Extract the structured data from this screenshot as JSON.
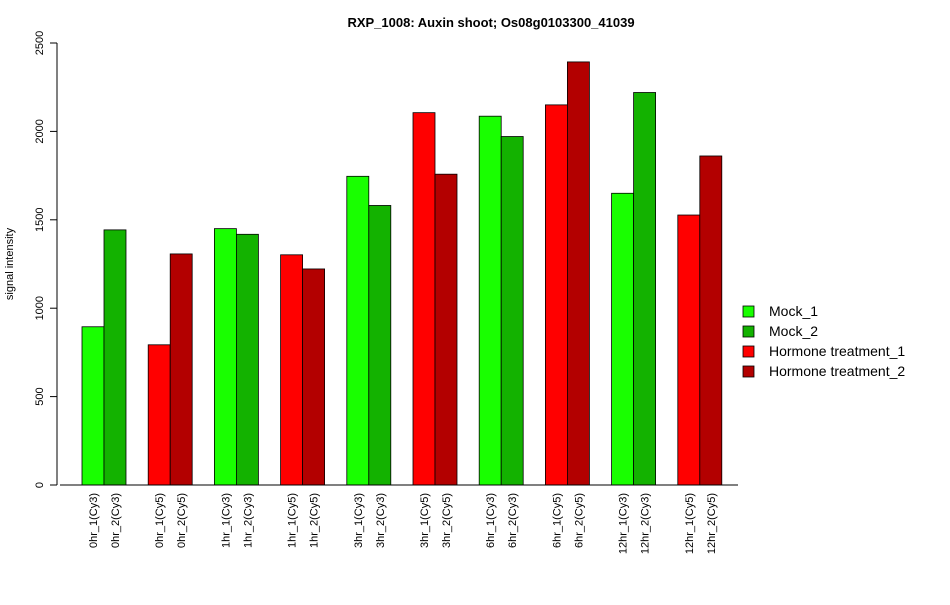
{
  "chart_data": {
    "type": "bar",
    "title": "RXP_1008: Auxin shoot; Os08g0103300_41039",
    "ylabel": "signal intensity",
    "xlabel": "",
    "ylim": [
      0,
      2500
    ],
    "yticks": [
      0,
      500,
      1000,
      1500,
      2000,
      2500
    ],
    "grid": false,
    "legend_position": "right",
    "legend": [
      {
        "name": "Mock_1",
        "color": "#19ff00"
      },
      {
        "name": "Mock_2",
        "color": "#13b200"
      },
      {
        "name": "Hormone treatment_1",
        "color": "#ff0000"
      },
      {
        "name": "Hormone treatment_2",
        "color": "#b30000"
      }
    ],
    "bars": [
      {
        "label": "0hr_1(Cy3)",
        "value": 895,
        "color": "#19ff00"
      },
      {
        "label": "0hr_2(Cy3)",
        "value": 1443,
        "color": "#13b200"
      },
      {
        "label": "0hr_1(Cy5)",
        "value": 793,
        "color": "#ff0000"
      },
      {
        "label": "0hr_2(Cy5)",
        "value": 1307,
        "color": "#b30000"
      },
      {
        "label": "1hr_1(Cy3)",
        "value": 1450,
        "color": "#19ff00"
      },
      {
        "label": "1hr_2(Cy3)",
        "value": 1418,
        "color": "#13b200"
      },
      {
        "label": "1hr_1(Cy5)",
        "value": 1302,
        "color": "#ff0000"
      },
      {
        "label": "1hr_2(Cy5)",
        "value": 1222,
        "color": "#b30000"
      },
      {
        "label": "3hr_1(Cy3)",
        "value": 1746,
        "color": "#19ff00"
      },
      {
        "label": "3hr_2(Cy3)",
        "value": 1581,
        "color": "#13b200"
      },
      {
        "label": "3hr_1(Cy5)",
        "value": 2106,
        "color": "#ff0000"
      },
      {
        "label": "3hr_2(Cy5)",
        "value": 1758,
        "color": "#b30000"
      },
      {
        "label": "6hr_1(Cy3)",
        "value": 2086,
        "color": "#19ff00"
      },
      {
        "label": "6hr_2(Cy3)",
        "value": 1971,
        "color": "#13b200"
      },
      {
        "label": "6hr_1(Cy5)",
        "value": 2150,
        "color": "#ff0000"
      },
      {
        "label": "6hr_2(Cy5)",
        "value": 2393,
        "color": "#b30000"
      },
      {
        "label": "12hr_1(Cy3)",
        "value": 1650,
        "color": "#19ff00"
      },
      {
        "label": "12hr_2(Cy3)",
        "value": 2220,
        "color": "#13b200"
      },
      {
        "label": "12hr_1(Cy5)",
        "value": 1527,
        "color": "#ff0000"
      },
      {
        "label": "12hr_2(Cy5)",
        "value": 1861,
        "color": "#b30000"
      }
    ]
  }
}
